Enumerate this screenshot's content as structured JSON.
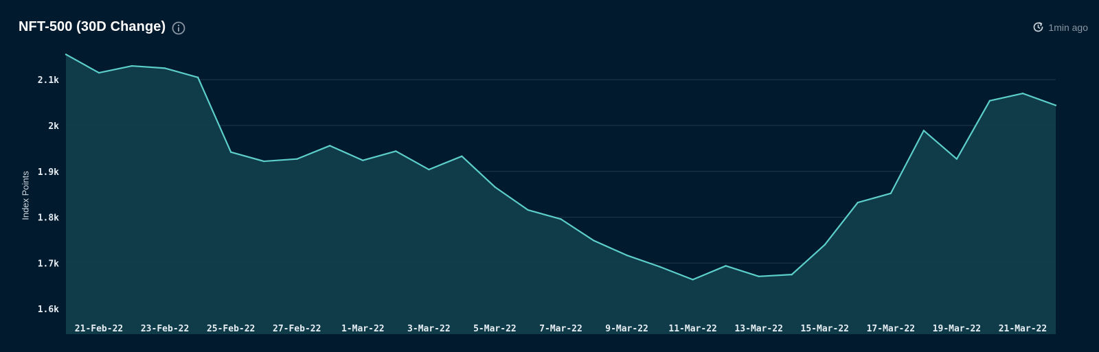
{
  "header": {
    "title": "NFT-500 (30D Change)",
    "info_icon": "info-circle-icon",
    "updated_icon": "refresh-clock-icon",
    "updated_text": "1min ago"
  },
  "colors": {
    "background": "#021a2e",
    "line": "#5ccfcb",
    "area": "#113f4c",
    "grid": "#1d3b4f"
  },
  "chart_data": {
    "type": "area",
    "ylabel": "Index Points",
    "xlabel": "",
    "title": "",
    "ylim": [
      1545,
      2160
    ],
    "y_ticks": [
      1600,
      1700,
      1800,
      1900,
      2000,
      2100
    ],
    "y_tick_labels": [
      "1.6k",
      "1.7k",
      "1.8k",
      "1.9k",
      "2k",
      "2.1k"
    ],
    "x_tick_labels": [
      "21-Feb-22",
      "23-Feb-22",
      "25-Feb-22",
      "27-Feb-22",
      "1-Mar-22",
      "3-Mar-22",
      "5-Mar-22",
      "7-Mar-22",
      "9-Mar-22",
      "11-Mar-22",
      "13-Mar-22",
      "15-Mar-22",
      "17-Mar-22",
      "19-Mar-22",
      "21-Mar-22"
    ],
    "grid": true,
    "legend": "none",
    "series": [
      {
        "x": [
          "20-Feb-22",
          "21-Feb-22",
          "22-Feb-22",
          "23-Feb-22",
          "24-Feb-22",
          "25-Feb-22",
          "26-Feb-22",
          "27-Feb-22",
          "28-Feb-22",
          "1-Mar-22",
          "2-Mar-22",
          "3-Mar-22",
          "4-Mar-22",
          "5-Mar-22",
          "6-Mar-22",
          "7-Mar-22",
          "8-Mar-22",
          "9-Mar-22",
          "10-Mar-22",
          "11-Mar-22",
          "12-Mar-22",
          "13-Mar-22",
          "14-Mar-22",
          "15-Mar-22",
          "16-Mar-22",
          "17-Mar-22",
          "18-Mar-22",
          "19-Mar-22",
          "20-Mar-22",
          "21-Mar-22",
          "22-Mar-22"
        ],
        "values": [
          2155,
          2115,
          2130,
          2125,
          2105,
          1942,
          1922,
          1927,
          1956,
          1924,
          1944,
          1904,
          1933,
          1866,
          1816,
          1796,
          1749,
          1717,
          1692,
          1664,
          1694,
          1671,
          1675,
          1740,
          1832,
          1852,
          1989,
          1927,
          2054,
          2070,
          2044
        ]
      }
    ]
  }
}
